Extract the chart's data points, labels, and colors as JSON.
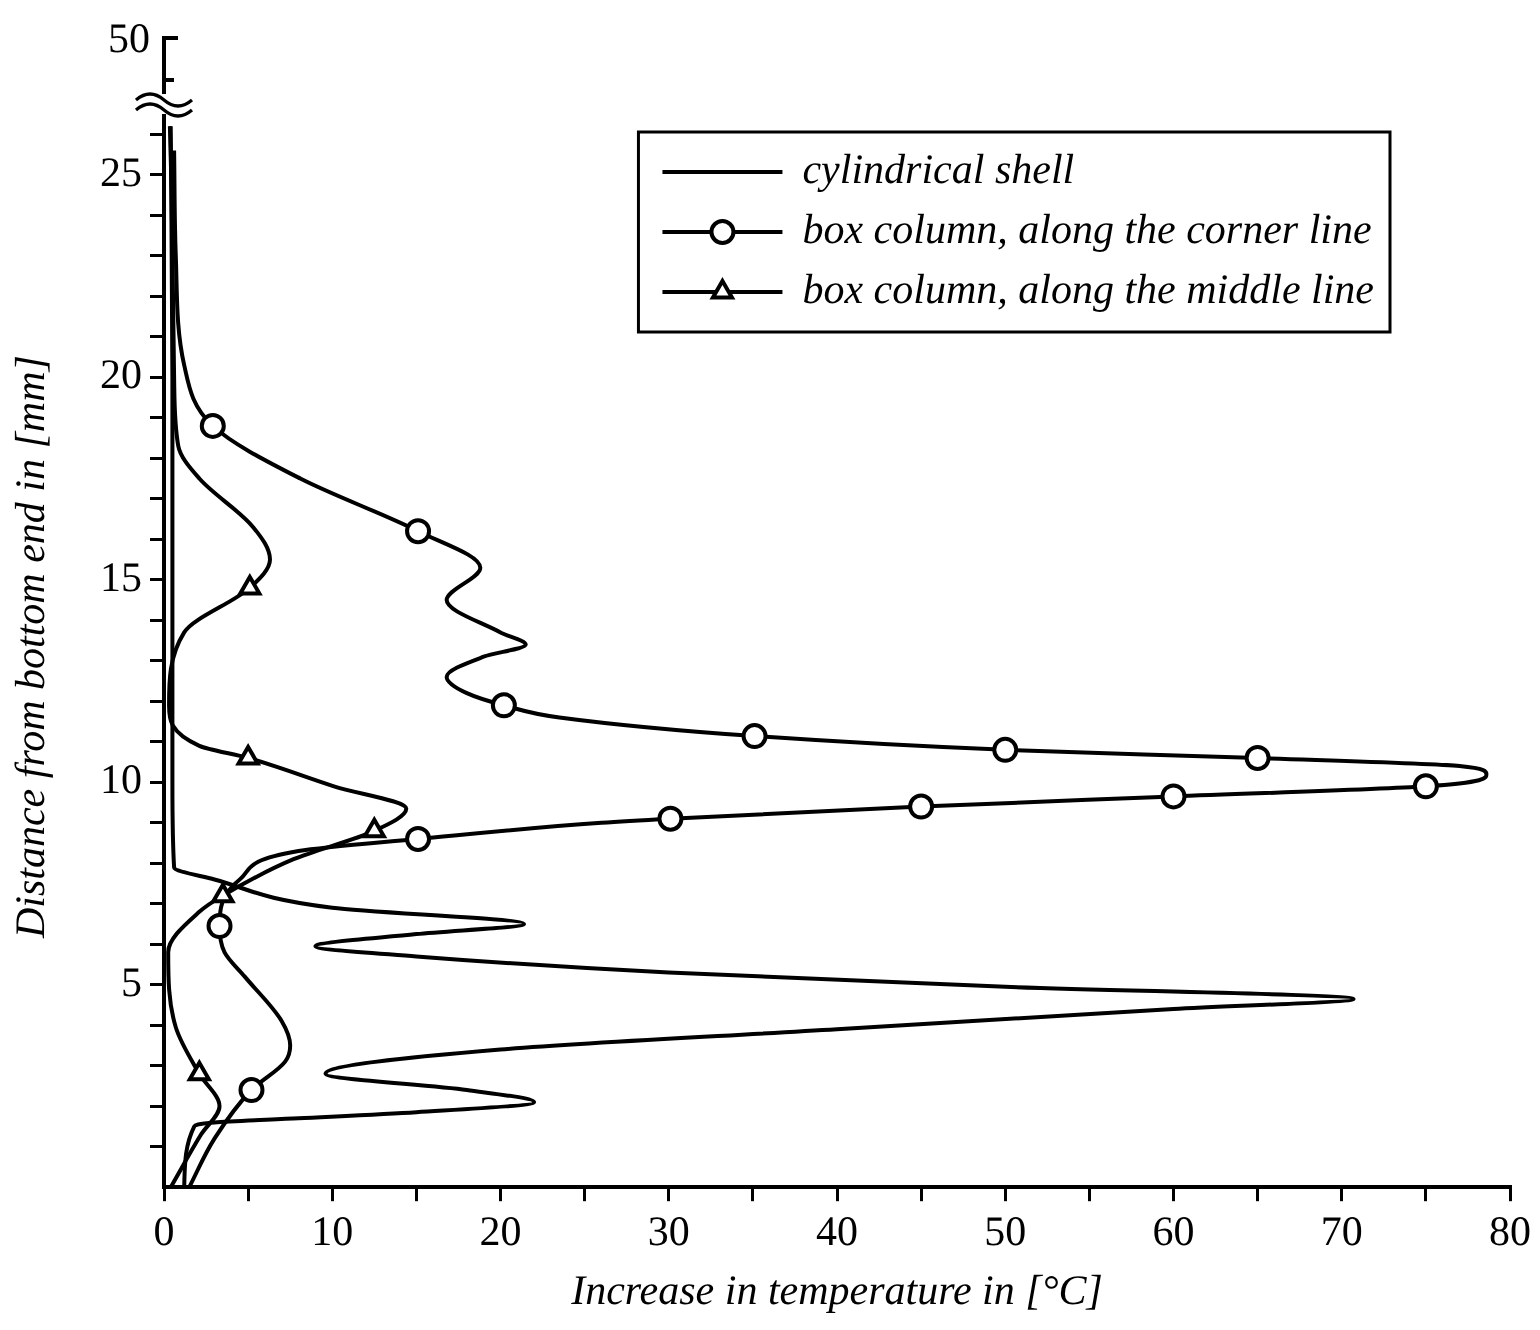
{
  "chart_data": {
    "type": "line",
    "xlabel": "Increase in temperature in [°C]",
    "ylabel": "Distance from bottom end in [mm]",
    "annotations": [
      "50"
    ],
    "xlim": [
      0,
      80
    ],
    "xticks": [
      0,
      {
        "value": 5,
        "label": null
      },
      10,
      {
        "value": 15,
        "label": null
      },
      20,
      {
        "value": 25,
        "label": null
      },
      30,
      {
        "value": 35,
        "label": null
      },
      40,
      {
        "value": 45,
        "label": null
      },
      50,
      {
        "value": 55,
        "label": null
      },
      60,
      {
        "value": 65,
        "label": null
      },
      70,
      {
        "value": 75,
        "label": null
      },
      80
    ],
    "ylim": [
      0,
      26.7
    ],
    "yticks": [
      {
        "value": 1,
        "label": null
      },
      {
        "value": 2,
        "label": null
      },
      {
        "value": 3,
        "label": null
      },
      {
        "value": 4,
        "label": null
      },
      5,
      {
        "value": 6,
        "label": null
      },
      {
        "value": 7,
        "label": null
      },
      {
        "value": 8,
        "label": null
      },
      {
        "value": 9,
        "label": null
      },
      10,
      {
        "value": 11,
        "label": null
      },
      {
        "value": 12,
        "label": null
      },
      {
        "value": 13,
        "label": null
      },
      {
        "value": 14,
        "label": null
      },
      15,
      {
        "value": 16,
        "label": null
      },
      {
        "value": 17,
        "label": null
      },
      {
        "value": 18,
        "label": null
      },
      {
        "value": 19,
        "label": null
      },
      20,
      {
        "value": 21,
        "label": null
      },
      {
        "value": 22,
        "label": null
      },
      {
        "value": 23,
        "label": null
      },
      {
        "value": 24,
        "label": null
      },
      25,
      {
        "value": 26,
        "label": null
      }
    ],
    "grid": false,
    "legend": "top right",
    "line_style": "solid",
    "series": [
      {
        "name": "cylindrical shell",
        "type": "line",
        "color": "#000000",
        "marker": "none",
        "x": [
          1.2,
          1.8,
          3,
          8,
          15,
          22,
          18,
          9.6,
          20,
          40,
          60,
          70.7,
          50,
          30,
          15,
          9,
          15,
          21.4,
          10,
          3,
          0.6,
          0.5,
          0.5,
          0.4
        ],
        "values": [
          0,
          1.5,
          1.6,
          1.7,
          1.85,
          2.1,
          2.4,
          2.8,
          3.4,
          3.9,
          4.4,
          4.65,
          4.95,
          5.3,
          5.7,
          5.95,
          6.25,
          6.5,
          6.9,
          7.6,
          7.9,
          10,
          20,
          26.2
        ]
      },
      {
        "type": "line",
        "color": "#000000",
        "marker": "none",
        "x": [
          1.5,
          3,
          5.2,
          7.2,
          7.5,
          7,
          4.8,
          3.6,
          3.3,
          4.5,
          8,
          15.1,
          26,
          30.1,
          45,
          60,
          75,
          78.6,
          77,
          65,
          50,
          35.1,
          23.5,
          20.2,
          18,
          16.8,
          19,
          21.5,
          20,
          16.8,
          18.8,
          15.1,
          8.1,
          2.9,
          1.2,
          0.7,
          0.6
        ],
        "values": [
          0,
          1.2,
          2.4,
          3.1,
          3.5,
          4.1,
          5.2,
          5.8,
          6.45,
          7.6,
          8.3,
          8.6,
          9.0,
          9.1,
          9.4,
          9.65,
          9.9,
          10.2,
          10.4,
          10.6,
          10.8,
          11.14,
          11.6,
          11.9,
          12.2,
          12.6,
          13.1,
          13.4,
          13.7,
          14.5,
          15.3,
          16.2,
          17.5,
          18.8,
          20.3,
          23,
          25.6
        ]
      },
      {
        "type": "line",
        "color": "#000000",
        "marker": "none",
        "x": [
          0.4,
          2.2,
          3.3,
          2.1,
          0.7,
          0.25,
          2.1,
          3.5,
          7.7,
          12.5,
          14.4,
          10.1,
          5,
          2.1,
          0.3,
          1.2,
          5.1,
          6.3,
          5.3,
          2.1,
          0.85,
          0.6,
          0.45,
          0.35
        ],
        "values": [
          0,
          1.3,
          2,
          2.8,
          3.95,
          5.8,
          6.8,
          7.2,
          8.1,
          8.8,
          9.35,
          9.9,
          10.6,
          10.9,
          11.9,
          13.7,
          14.8,
          15.5,
          16.3,
          17.5,
          18.3,
          20,
          24.6,
          26.2
        ]
      },
      {
        "name": "box column, along the corner line",
        "type": "scatter",
        "color": "#000000",
        "marker": "circle",
        "x": [
          5.2,
          3.3,
          15.1,
          30.1,
          45,
          60,
          75,
          65,
          50,
          35.1,
          20.2,
          15.1,
          2.9
        ],
        "values": [
          2.4,
          6.45,
          8.6,
          9.1,
          9.4,
          9.65,
          9.9,
          10.6,
          10.8,
          11.14,
          11.9,
          16.2,
          18.8
        ]
      },
      {
        "name": "box column, along the middle line",
        "type": "scatter",
        "color": "#000000",
        "marker": "triangle",
        "x": [
          2.1,
          3.5,
          12.5,
          5,
          5.1
        ],
        "values": [
          2.8,
          7.2,
          8.8,
          10.6,
          14.8
        ]
      }
    ]
  }
}
